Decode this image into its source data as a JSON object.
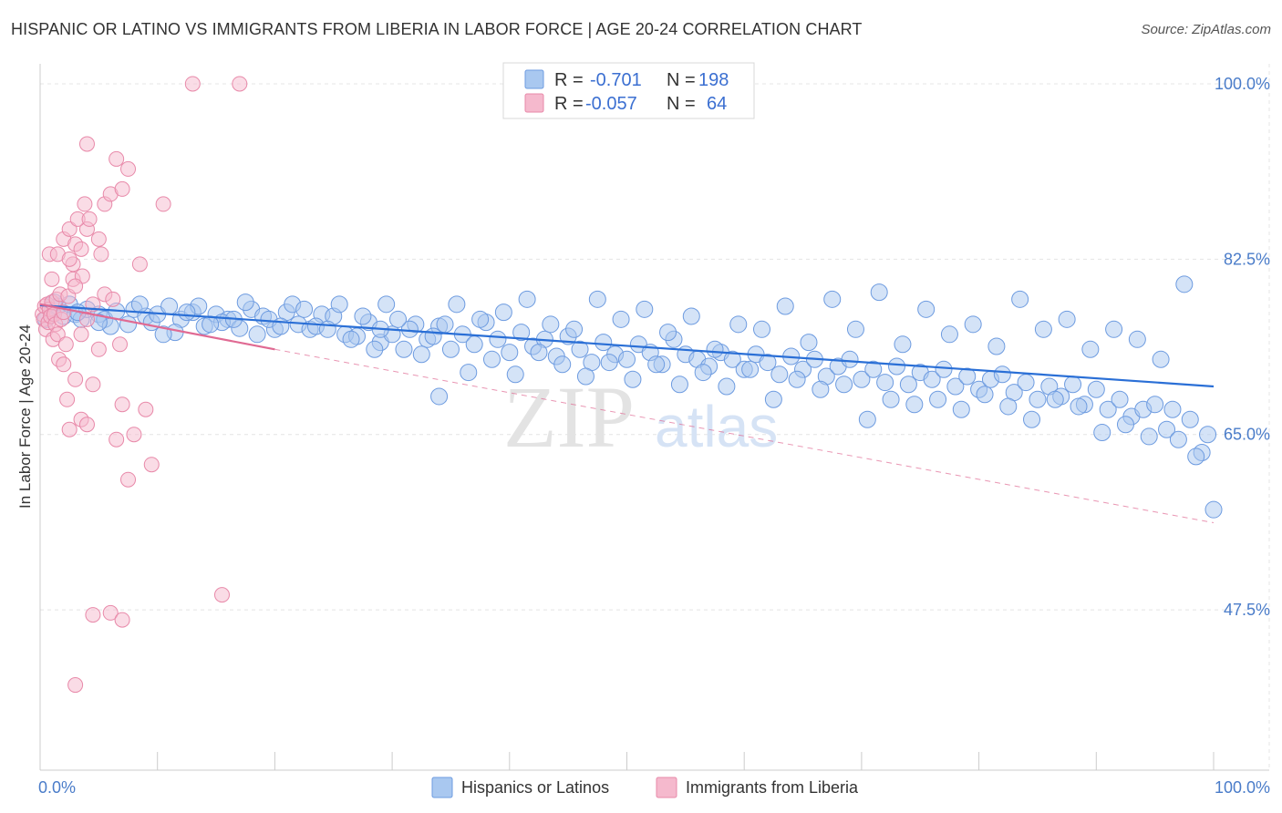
{
  "title": "HISPANIC OR LATINO VS IMMIGRANTS FROM LIBERIA IN LABOR FORCE | AGE 20-24 CORRELATION CHART",
  "source": "Source: ZipAtlas.com",
  "watermark": {
    "zip": "ZIP",
    "atlas": "atlas"
  },
  "chart_data": {
    "type": "scatter",
    "ylabel": "In Labor Force | Age 20-24",
    "xlabel": "",
    "xlim": [
      0,
      100
    ],
    "ylim": [
      31.5,
      102
    ],
    "x_tick_labels": {
      "left": "0.0%",
      "right": "100.0%"
    },
    "y_ticks": [
      {
        "value": 100.0,
        "label": "100.0%"
      },
      {
        "value": 82.5,
        "label": "82.5%"
      },
      {
        "value": 65.0,
        "label": "65.0%"
      },
      {
        "value": 47.5,
        "label": "47.5%"
      }
    ],
    "grid": true,
    "legend_placement": "top-center",
    "colors": {
      "blue_fill": "#a9c8f0",
      "blue_stroke": "#6d9be0",
      "blue_line": "#2a6fd6",
      "pink_fill": "#f5b9cd",
      "pink_stroke": "#e889a9",
      "pink_line": "#e06a93",
      "grid": "#e4e4e4"
    },
    "legend": {
      "r_label": "R =",
      "n_label": "N =",
      "entries": [
        {
          "series": "blue",
          "r": "-0.701",
          "n": "198"
        },
        {
          "series": "pink",
          "r": "-0.057",
          "n": "64"
        }
      ]
    },
    "bottom_legend": [
      {
        "series": "blue",
        "label": "Hispanics or Latinos"
      },
      {
        "series": "pink",
        "label": "Immigrants from Liberia"
      }
    ],
    "trendlines": [
      {
        "series": "blue",
        "x1": 0,
        "y1": 77.9,
        "x2": 100,
        "y2": 69.8,
        "style": "solid"
      },
      {
        "series": "pink",
        "x1": 0,
        "y1": 78.0,
        "x2": 20,
        "y2": 73.5,
        "style": "solid"
      },
      {
        "series": "pink",
        "x1": 20,
        "y1": 73.5,
        "x2": 100,
        "y2": 56.2,
        "style": "dashed"
      }
    ],
    "series": [
      {
        "name": "Hispanics or Latinos",
        "key": "blue",
        "points": [
          [
            0.5,
            76.5
          ],
          [
            1.0,
            77.2
          ],
          [
            1.5,
            77.8
          ],
          [
            2.0,
            76.8
          ],
          [
            2.5,
            78.0
          ],
          [
            3.0,
            77.0
          ],
          [
            3.5,
            76.5
          ],
          [
            4.0,
            77.5
          ],
          [
            5.0,
            77.0
          ],
          [
            5.5,
            76.5
          ],
          [
            6.5,
            77.3
          ],
          [
            7.5,
            76.0
          ],
          [
            8.0,
            77.5
          ],
          [
            9.0,
            76.8
          ],
          [
            9.5,
            76.2
          ],
          [
            10.0,
            77.0
          ],
          [
            11.0,
            77.8
          ],
          [
            12.0,
            76.5
          ],
          [
            13.0,
            77.2
          ],
          [
            14.0,
            75.8
          ],
          [
            15.0,
            77.0
          ],
          [
            16.0,
            76.5
          ],
          [
            17.0,
            75.6
          ],
          [
            18.0,
            77.5
          ],
          [
            19.0,
            76.8
          ],
          [
            20.0,
            75.5
          ],
          [
            21.0,
            77.2
          ],
          [
            22.0,
            76.0
          ],
          [
            23.0,
            75.5
          ],
          [
            24.0,
            77.0
          ],
          [
            25.0,
            76.8
          ],
          [
            26.0,
            75.0
          ],
          [
            27.0,
            74.8
          ],
          [
            28.0,
            76.2
          ],
          [
            29.0,
            74.2
          ],
          [
            30.0,
            75.0
          ],
          [
            31.0,
            73.5
          ],
          [
            32.0,
            76.0
          ],
          [
            33.0,
            74.5
          ],
          [
            34.0,
            75.8
          ],
          [
            35.0,
            73.5
          ],
          [
            36.0,
            75.0
          ],
          [
            37.0,
            74.0
          ],
          [
            38.0,
            76.2
          ],
          [
            39.0,
            74.5
          ],
          [
            40.0,
            73.2
          ],
          [
            41.0,
            75.2
          ],
          [
            42.0,
            73.8
          ],
          [
            43.0,
            74.5
          ],
          [
            44.0,
            72.8
          ],
          [
            45.0,
            74.8
          ],
          [
            46.0,
            73.5
          ],
          [
            47.0,
            72.2
          ],
          [
            48.0,
            74.2
          ],
          [
            49.0,
            73.0
          ],
          [
            50.0,
            72.5
          ],
          [
            51.0,
            74.0
          ],
          [
            52.0,
            73.2
          ],
          [
            53.0,
            72.0
          ],
          [
            54.0,
            74.5
          ],
          [
            55.0,
            73.0
          ],
          [
            56.0,
            72.5
          ],
          [
            57.0,
            71.8
          ],
          [
            58.0,
            73.2
          ],
          [
            59.0,
            72.5
          ],
          [
            60.0,
            71.5
          ],
          [
            61.0,
            73.0
          ],
          [
            62.0,
            72.2
          ],
          [
            63.0,
            71.0
          ],
          [
            64.0,
            72.8
          ],
          [
            65.0,
            71.5
          ],
          [
            66.0,
            72.5
          ],
          [
            67.0,
            70.8
          ],
          [
            68.0,
            71.8
          ],
          [
            69.0,
            72.5
          ],
          [
            70.0,
            70.5
          ],
          [
            71.0,
            71.5
          ],
          [
            72.0,
            70.2
          ],
          [
            73.0,
            71.8
          ],
          [
            74.0,
            70.0
          ],
          [
            75.0,
            71.2
          ],
          [
            76.0,
            70.5
          ],
          [
            77.0,
            71.5
          ],
          [
            78.0,
            69.8
          ],
          [
            79.0,
            70.8
          ],
          [
            80.0,
            69.5
          ],
          [
            81.0,
            70.5
          ],
          [
            82.0,
            71.0
          ],
          [
            83.0,
            69.2
          ],
          [
            84.0,
            70.2
          ],
          [
            85.0,
            68.5
          ],
          [
            86.0,
            69.8
          ],
          [
            87.0,
            68.8
          ],
          [
            88.0,
            70.0
          ],
          [
            89.0,
            68.0
          ],
          [
            90.0,
            69.5
          ],
          [
            91.0,
            67.5
          ],
          [
            92.0,
            68.5
          ],
          [
            93.0,
            66.8
          ],
          [
            94.0,
            67.5
          ],
          [
            95.0,
            68.0
          ],
          [
            96.0,
            65.5
          ],
          [
            97.0,
            64.5
          ],
          [
            98.0,
            66.5
          ],
          [
            99.0,
            63.2
          ],
          [
            100.0,
            57.5
          ],
          [
            1.2,
            78.2
          ],
          [
            3.2,
            77.2
          ],
          [
            6.0,
            75.8
          ],
          [
            8.5,
            78.0
          ],
          [
            11.5,
            75.2
          ],
          [
            13.5,
            77.8
          ],
          [
            15.5,
            76.2
          ],
          [
            17.5,
            78.2
          ],
          [
            19.5,
            76.5
          ],
          [
            21.5,
            78.0
          ],
          [
            23.5,
            75.8
          ],
          [
            25.5,
            78.0
          ],
          [
            27.5,
            76.8
          ],
          [
            29.5,
            78.0
          ],
          [
            31.5,
            75.5
          ],
          [
            33.5,
            74.8
          ],
          [
            35.5,
            78.0
          ],
          [
            37.5,
            76.5
          ],
          [
            39.5,
            77.2
          ],
          [
            41.5,
            78.5
          ],
          [
            43.5,
            76.0
          ],
          [
            45.5,
            75.5
          ],
          [
            47.5,
            78.5
          ],
          [
            49.5,
            76.5
          ],
          [
            51.5,
            77.5
          ],
          [
            53.5,
            75.2
          ],
          [
            55.5,
            76.8
          ],
          [
            57.5,
            73.5
          ],
          [
            59.5,
            76.0
          ],
          [
            61.5,
            75.5
          ],
          [
            63.5,
            77.8
          ],
          [
            65.5,
            74.2
          ],
          [
            67.5,
            78.5
          ],
          [
            69.5,
            75.5
          ],
          [
            71.5,
            79.2
          ],
          [
            73.5,
            74.0
          ],
          [
            75.5,
            77.5
          ],
          [
            77.5,
            75.0
          ],
          [
            79.5,
            76.0
          ],
          [
            81.5,
            73.8
          ],
          [
            83.5,
            78.5
          ],
          [
            85.5,
            75.5
          ],
          [
            87.5,
            76.5
          ],
          [
            89.5,
            73.5
          ],
          [
            91.5,
            75.5
          ],
          [
            93.5,
            74.5
          ],
          [
            95.5,
            72.5
          ],
          [
            97.5,
            80.0
          ],
          [
            5.0,
            76.2
          ],
          [
            10.5,
            75.0
          ],
          [
            12.5,
            77.2
          ],
          [
            14.5,
            76.0
          ],
          [
            16.5,
            76.5
          ],
          [
            18.5,
            75.0
          ],
          [
            20.5,
            75.8
          ],
          [
            22.5,
            77.5
          ],
          [
            24.5,
            75.5
          ],
          [
            26.5,
            74.5
          ],
          [
            28.5,
            73.5
          ],
          [
            30.5,
            76.5
          ],
          [
            32.5,
            73.0
          ],
          [
            34.5,
            76.0
          ],
          [
            36.5,
            71.2
          ],
          [
            38.5,
            72.5
          ],
          [
            40.5,
            71.0
          ],
          [
            42.5,
            73.2
          ],
          [
            44.5,
            72.0
          ],
          [
            46.5,
            70.8
          ],
          [
            48.5,
            72.2
          ],
          [
            50.5,
            70.5
          ],
          [
            52.5,
            72.0
          ],
          [
            54.5,
            70.0
          ],
          [
            56.5,
            71.2
          ],
          [
            58.5,
            69.8
          ],
          [
            60.5,
            71.5
          ],
          [
            62.5,
            68.5
          ],
          [
            64.5,
            70.5
          ],
          [
            66.5,
            69.5
          ],
          [
            68.5,
            70.0
          ],
          [
            70.5,
            66.5
          ],
          [
            72.5,
            68.5
          ],
          [
            74.5,
            68.0
          ],
          [
            76.5,
            68.5
          ],
          [
            78.5,
            67.5
          ],
          [
            80.5,
            69.0
          ],
          [
            82.5,
            67.8
          ],
          [
            84.5,
            66.5
          ],
          [
            86.5,
            68.5
          ],
          [
            88.5,
            67.8
          ],
          [
            90.5,
            65.2
          ],
          [
            92.5,
            66.0
          ],
          [
            94.5,
            64.8
          ],
          [
            96.5,
            67.5
          ],
          [
            98.5,
            62.8
          ],
          [
            34.0,
            68.8
          ],
          [
            29.0,
            75.5
          ],
          [
            99.5,
            65.0
          ]
        ]
      },
      {
        "name": "Immigrants from Liberia",
        "key": "pink",
        "points": [
          [
            0.2,
            77.0
          ],
          [
            0.3,
            76.5
          ],
          [
            0.4,
            77.8
          ],
          [
            0.5,
            75.5
          ],
          [
            0.6,
            78.0
          ],
          [
            0.7,
            76.2
          ],
          [
            0.8,
            77.5
          ],
          [
            0.9,
            76.8
          ],
          [
            1.0,
            78.2
          ],
          [
            1.1,
            74.5
          ],
          [
            1.2,
            77.0
          ],
          [
            1.3,
            76.0
          ],
          [
            1.4,
            78.5
          ],
          [
            1.5,
            75.0
          ],
          [
            1.6,
            72.5
          ],
          [
            1.7,
            79.0
          ],
          [
            1.8,
            76.5
          ],
          [
            2.0,
            77.2
          ],
          [
            2.2,
            74.0
          ],
          [
            2.4,
            78.8
          ],
          [
            0.8,
            83.0
          ],
          [
            1.5,
            83.0
          ],
          [
            2.0,
            84.5
          ],
          [
            2.5,
            85.5
          ],
          [
            3.0,
            84.0
          ],
          [
            3.5,
            83.5
          ],
          [
            4.0,
            85.5
          ],
          [
            2.8,
            82.0
          ],
          [
            3.2,
            86.5
          ],
          [
            3.8,
            88.0
          ],
          [
            4.2,
            86.5
          ],
          [
            5.0,
            84.5
          ],
          [
            5.2,
            83.0
          ],
          [
            2.5,
            82.5
          ],
          [
            5.5,
            88.0
          ],
          [
            6.0,
            89.0
          ],
          [
            7.5,
            91.5
          ],
          [
            8.5,
            82.0
          ],
          [
            1.0,
            80.5
          ],
          [
            2.8,
            80.5
          ],
          [
            3.6,
            80.8
          ],
          [
            4.5,
            78.0
          ],
          [
            5.5,
            79.0
          ],
          [
            6.2,
            78.5
          ],
          [
            4.0,
            76.5
          ],
          [
            3.0,
            79.8
          ],
          [
            2.0,
            72.0
          ],
          [
            3.5,
            75.0
          ],
          [
            5.0,
            73.5
          ],
          [
            6.8,
            74.0
          ],
          [
            4.5,
            70.0
          ],
          [
            3.0,
            70.5
          ],
          [
            2.3,
            68.5
          ],
          [
            3.5,
            66.5
          ],
          [
            4.0,
            66.0
          ],
          [
            2.5,
            65.5
          ],
          [
            6.5,
            64.5
          ],
          [
            8.0,
            65.0
          ],
          [
            7.0,
            68.0
          ],
          [
            9.0,
            67.5
          ],
          [
            7.5,
            60.5
          ],
          [
            9.5,
            62.0
          ],
          [
            13.0,
            100.0
          ],
          [
            17.0,
            100.0
          ],
          [
            4.0,
            94.0
          ],
          [
            6.5,
            92.5
          ],
          [
            10.5,
            88.0
          ],
          [
            7.0,
            89.5
          ],
          [
            4.5,
            47.0
          ],
          [
            6.0,
            47.2
          ],
          [
            3.0,
            40.0
          ],
          [
            15.5,
            49.0
          ],
          [
            7.0,
            46.5
          ]
        ]
      }
    ]
  }
}
